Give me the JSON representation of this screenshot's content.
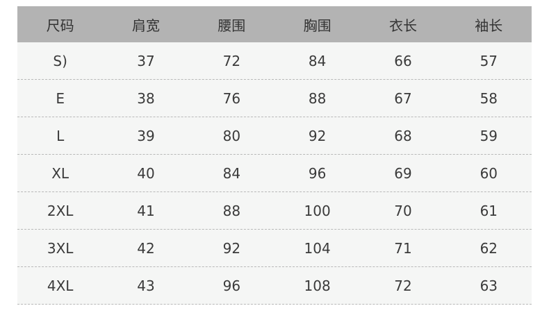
{
  "table": {
    "header": [
      "尺码",
      "肩宽",
      "腰围",
      "胸围",
      "衣长",
      "袖长"
    ],
    "rows": [
      [
        "S)",
        37,
        72,
        84,
        66,
        57
      ],
      [
        "E",
        38,
        76,
        88,
        67,
        58
      ],
      [
        "L",
        39,
        80,
        92,
        68,
        59
      ],
      [
        "XL",
        40,
        84,
        96,
        69,
        60
      ],
      [
        "2XL",
        41,
        88,
        100,
        70,
        61
      ],
      [
        "3XL",
        42,
        92,
        104,
        71,
        62
      ],
      [
        "4XL",
        43,
        96,
        108,
        72,
        63
      ]
    ]
  }
}
